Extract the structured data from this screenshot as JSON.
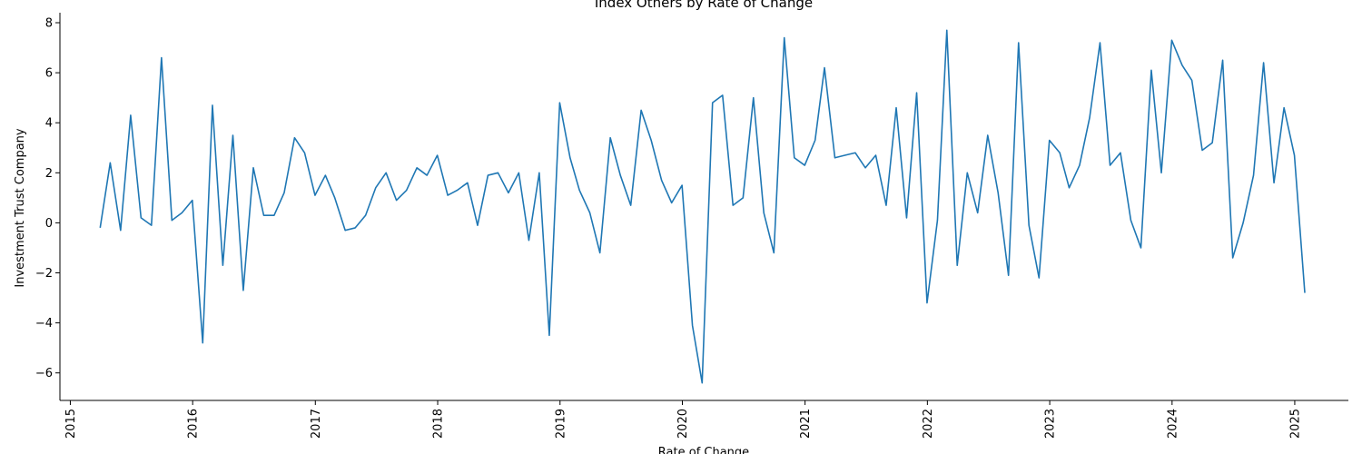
{
  "chart_data": {
    "type": "line",
    "title": "Index Others by Rate of Change",
    "xlabel": "Rate of Change",
    "ylabel": "Investment Trust Company",
    "x_type": "date",
    "xlim": [
      "2014-12-01",
      "2025-06-10"
    ],
    "ylim": [
      -7.1,
      8.4
    ],
    "x_ticks": [
      "2015",
      "2016",
      "2017",
      "2018",
      "2019",
      "2020",
      "2021",
      "2022",
      "2023",
      "2024",
      "2025"
    ],
    "y_ticks": [
      -6,
      -4,
      -2,
      0,
      2,
      4,
      6,
      8
    ],
    "grid": false,
    "legend": false,
    "color": "#1f77b4",
    "series": [
      {
        "x": [
          "2015-03-31",
          "2015-04-30",
          "2015-05-31",
          "2015-06-30",
          "2015-07-31",
          "2015-08-31",
          "2015-09-30",
          "2015-10-31",
          "2015-11-30",
          "2015-12-31",
          "2016-01-31",
          "2016-02-29",
          "2016-03-31",
          "2016-04-30",
          "2016-05-31",
          "2016-06-30",
          "2016-07-31",
          "2016-08-31",
          "2016-09-30",
          "2016-10-31",
          "2016-11-30",
          "2016-12-31",
          "2017-01-31",
          "2017-02-28",
          "2017-03-31",
          "2017-04-30",
          "2017-05-31",
          "2017-06-30",
          "2017-07-31",
          "2017-08-31",
          "2017-09-30",
          "2017-10-31",
          "2017-11-30",
          "2017-12-31",
          "2018-01-31",
          "2018-02-28",
          "2018-03-31",
          "2018-04-30",
          "2018-05-31",
          "2018-06-30",
          "2018-07-31",
          "2018-08-31",
          "2018-09-30",
          "2018-10-31",
          "2018-11-30",
          "2018-12-31",
          "2019-01-31",
          "2019-02-28",
          "2019-03-31",
          "2019-04-30",
          "2019-05-31",
          "2019-06-30",
          "2019-07-31",
          "2019-08-31",
          "2019-09-30",
          "2019-10-31",
          "2019-11-30",
          "2019-12-31",
          "2020-01-31",
          "2020-02-29",
          "2020-03-31",
          "2020-04-30",
          "2020-05-31",
          "2020-06-30",
          "2020-07-31",
          "2020-08-31",
          "2020-09-30",
          "2020-10-31",
          "2020-11-30",
          "2020-12-31",
          "2021-01-31",
          "2021-02-28",
          "2021-03-31",
          "2021-04-30",
          "2021-05-31",
          "2021-06-30",
          "2021-07-31",
          "2021-08-31",
          "2021-09-30",
          "2021-10-31",
          "2021-11-30",
          "2021-12-31",
          "2022-01-31",
          "2022-02-28",
          "2022-03-31",
          "2022-04-30",
          "2022-05-31",
          "2022-06-30",
          "2022-07-31",
          "2022-08-31",
          "2022-09-30",
          "2022-10-31",
          "2022-11-30",
          "2022-12-31",
          "2023-01-31",
          "2023-02-28",
          "2023-03-31",
          "2023-04-30",
          "2023-05-31",
          "2023-06-30",
          "2023-07-31",
          "2023-08-31",
          "2023-09-30",
          "2023-10-31",
          "2023-11-30",
          "2023-12-31",
          "2024-01-31",
          "2024-02-29",
          "2024-03-31",
          "2024-04-30",
          "2024-05-31",
          "2024-06-30",
          "2024-07-31",
          "2024-08-31",
          "2024-09-30",
          "2024-10-31",
          "2024-11-30",
          "2024-12-31",
          "2025-01-31"
        ],
        "values": [
          -0.2,
          2.4,
          -0.3,
          4.3,
          0.2,
          -0.1,
          6.6,
          0.1,
          0.4,
          0.9,
          -4.8,
          4.7,
          -1.7,
          3.5,
          -2.7,
          2.2,
          0.3,
          0.3,
          1.2,
          3.4,
          2.8,
          1.1,
          1.9,
          1.0,
          -0.3,
          -0.2,
          0.3,
          1.4,
          2.0,
          0.9,
          1.3,
          2.2,
          1.9,
          2.7,
          1.1,
          1.3,
          1.6,
          -0.1,
          1.9,
          2.0,
          1.2,
          2.0,
          -0.7,
          2.0,
          -4.5,
          4.8,
          2.6,
          1.3,
          0.4,
          -1.2,
          3.4,
          1.9,
          0.7,
          4.5,
          3.3,
          1.7,
          0.8,
          1.5,
          -4.1,
          -6.4,
          4.8,
          5.1,
          0.7,
          1.0,
          5.0,
          0.4,
          -1.2,
          7.4,
          2.6,
          2.3,
          3.3,
          6.2,
          2.6,
          2.7,
          2.8,
          2.2,
          2.7,
          0.7,
          4.6,
          0.2,
          5.2,
          -3.2,
          0.1,
          7.7,
          -1.7,
          2.0,
          0.4,
          3.5,
          1.2,
          -2.1,
          7.2,
          -0.1,
          -2.2,
          3.3,
          2.8,
          1.4,
          2.3,
          4.2,
          7.2,
          2.3,
          2.8,
          0.1,
          -1.0,
          6.1,
          2.0,
          7.3,
          6.3,
          5.7,
          2.9,
          3.2,
          6.5,
          -1.4,
          0.0,
          1.9,
          6.4,
          1.6,
          4.6,
          2.7,
          -2.8
        ]
      }
    ]
  }
}
